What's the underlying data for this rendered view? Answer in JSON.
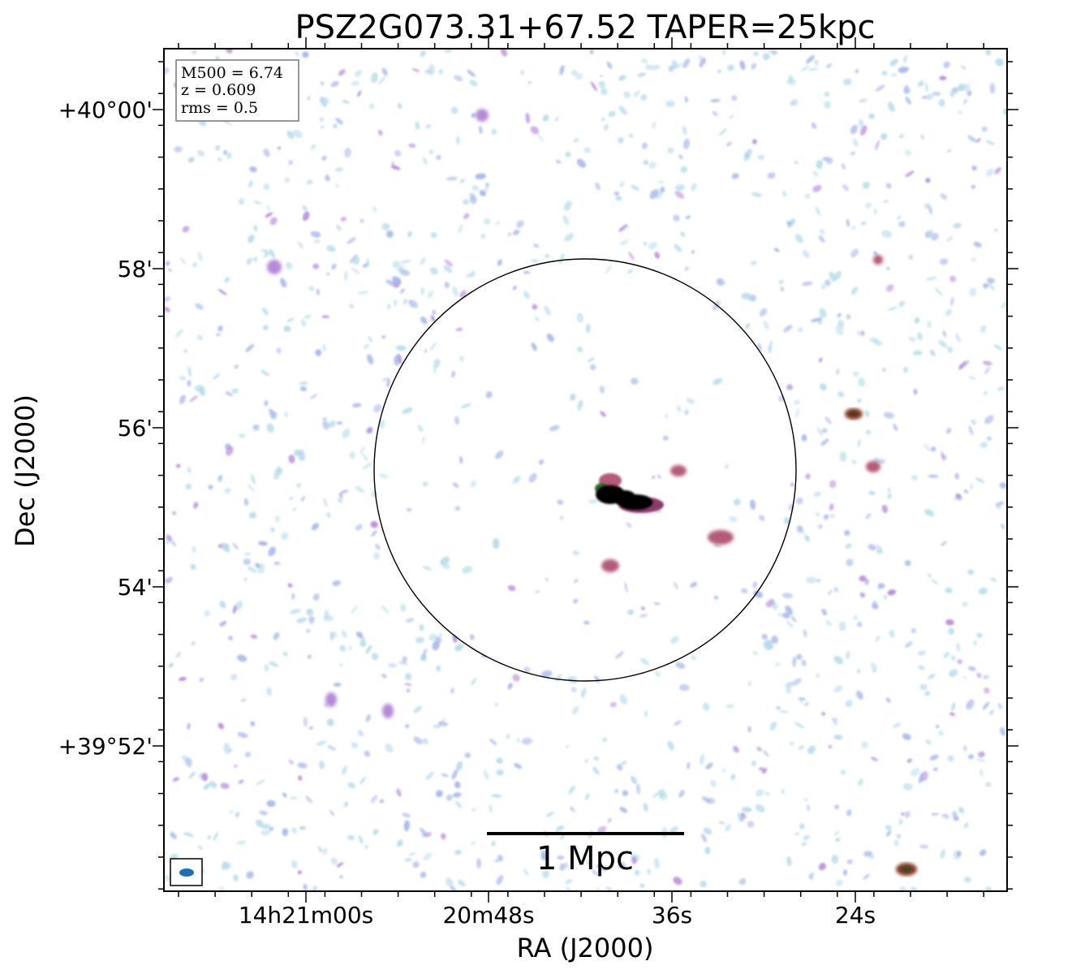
{
  "figure": {
    "title": "PSZ2G073.31+67.52 TAPER=25kpc",
    "xlabel": "RA (J2000)",
    "ylabel": "Dec (J2000)",
    "ra_ticks": [
      "14h21m00s",
      "20m48s",
      "36s",
      "24s"
    ],
    "dec_ticks": [
      "+40°00'",
      "58'",
      "56'",
      "54'",
      "+39°52'"
    ],
    "info_box": {
      "mass_line": "M500 = 6.74",
      "z_line": "z = 0.609",
      "rms_line": "rms = 0.5"
    },
    "scale_bar": {
      "label": "1 Mpc"
    },
    "colormap_colors": [
      "#ffffff",
      "#b9dcea",
      "#a7b7e8",
      "#b58ad8",
      "#b45a7a",
      "#8a3a2a",
      "#2f6a2a",
      "#000000"
    ]
  }
}
